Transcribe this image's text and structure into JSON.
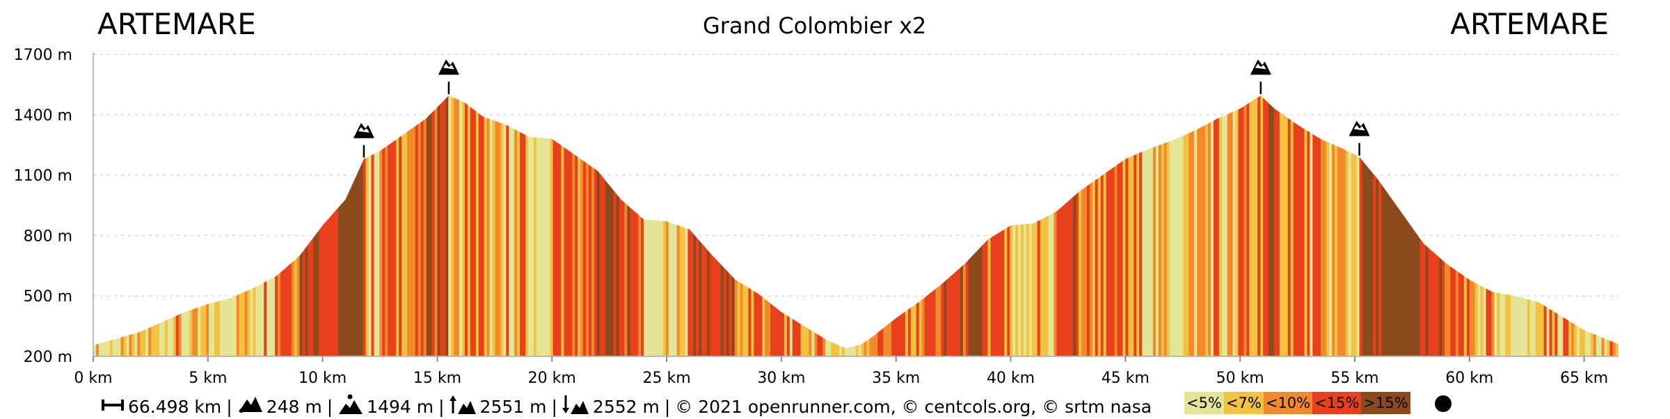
{
  "chart_data": {
    "type": "area",
    "title": "Grand Colombier x2",
    "start_label": "ARTEMARE",
    "end_label": "ARTEMARE",
    "xlim": [
      0,
      66.498
    ],
    "ylim": [
      200,
      1700
    ],
    "y_ticks": [
      200,
      500,
      800,
      1100,
      1400,
      1700
    ],
    "y_tick_labels": [
      "200 m",
      "500 m",
      "800 m",
      "1100 m",
      "1400 m",
      "1700 m"
    ],
    "x_ticks": [
      0,
      5,
      10,
      15,
      20,
      25,
      30,
      35,
      40,
      45,
      50,
      55,
      60,
      65
    ],
    "x_tick_labels": [
      "0 km",
      "5 km",
      "10 km",
      "15 km",
      "20 km",
      "25 km",
      "30 km",
      "35 km",
      "40 km",
      "45 km",
      "50 km",
      "55 km",
      "60 km",
      "65 km"
    ],
    "grid": true,
    "profile": {
      "distance_km": [
        0,
        2,
        3,
        4,
        5,
        6,
        7,
        8,
        9,
        10,
        11,
        11.8,
        12.5,
        13.5,
        14.5,
        15.5,
        16.2,
        17,
        18,
        19,
        20,
        21,
        22,
        23,
        24,
        25,
        26,
        27,
        28,
        29,
        30,
        31,
        32,
        32.8,
        33.5,
        34,
        35,
        36,
        37,
        38,
        39,
        40,
        41,
        42,
        43,
        44,
        45,
        46,
        47,
        48,
        49,
        50,
        50.9,
        51.5,
        52.5,
        53.5,
        54.5,
        55.2,
        56,
        57,
        58,
        59,
        60,
        61,
        62,
        63,
        64,
        65,
        66.498
      ],
      "elevation_m": [
        255,
        320,
        370,
        420,
        460,
        490,
        540,
        600,
        700,
        850,
        980,
        1180,
        1220,
        1300,
        1380,
        1495,
        1460,
        1390,
        1350,
        1290,
        1280,
        1200,
        1120,
        980,
        880,
        870,
        830,
        700,
        580,
        510,
        420,
        350,
        280,
        240,
        260,
        300,
        390,
        470,
        560,
        660,
        780,
        850,
        860,
        920,
        1020,
        1100,
        1180,
        1230,
        1270,
        1320,
        1380,
        1430,
        1495,
        1430,
        1350,
        1280,
        1230,
        1190,
        1080,
        920,
        760,
        660,
        580,
        520,
        500,
        470,
        400,
        330,
        260
      ]
    },
    "gradient_legend": [
      {
        "label": "<5%",
        "color": "#e5e597"
      },
      {
        "label": "<7%",
        "color": "#f2c240"
      },
      {
        "label": "<10%",
        "color": "#f08a2a"
      },
      {
        "label": "<15%",
        "color": "#e8401c"
      },
      {
        "label": ">15%",
        "color": "#8c4a1c"
      }
    ],
    "summits": [
      {
        "km": 11.8,
        "elevation_m": 1180,
        "icon": "mountain-summit-icon"
      },
      {
        "km": 15.5,
        "elevation_m": 1495,
        "icon": "mountain-summit-icon"
      },
      {
        "km": 50.9,
        "elevation_m": 1495,
        "icon": "mountain-summit-icon"
      },
      {
        "km": 55.2,
        "elevation_m": 1190,
        "icon": "mountain-summit-icon"
      }
    ]
  },
  "stats": {
    "distance": "66.498 km",
    "min_elevation": "248 m",
    "max_elevation": "1494 m",
    "ascent": "2551 m",
    "descent": "2552 m",
    "sep": "|",
    "credits": "© 2021 openrunner.com, © centcols.org, © srtm nasa"
  }
}
